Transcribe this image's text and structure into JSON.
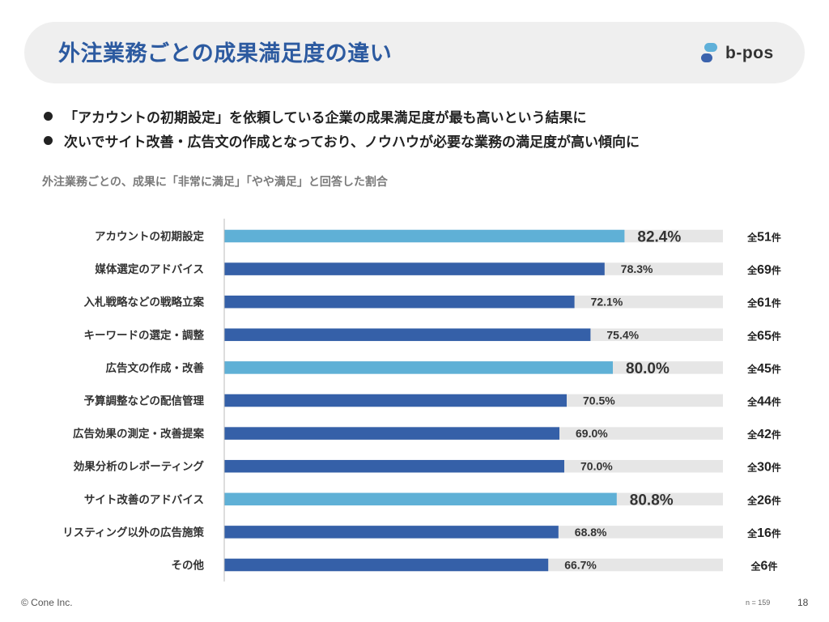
{
  "header": {
    "title": "外注業務ごとの成果満足度の違い",
    "logo_text": "b-pos",
    "logo_icon": "b-pos-logo-icon"
  },
  "bullets": [
    "「アカウントの初期設定」を依頼している企業の成果満足度が最も高いという結果に",
    "次いでサイト改善・広告文の作成となっており、ノウハウが必要な業務の満足度が高い傾向に"
  ],
  "subtitle": "外注業務ごとの、成果に「非常に満足」「やや満足」と回答した割合",
  "chart_data": {
    "type": "bar",
    "orientation": "horizontal",
    "categories": [
      "アカウントの初期設定",
      "媒体選定のアドバイス",
      "入札戦略などの戦略立案",
      "キーワードの選定・調整",
      "広告文の作成・改善",
      "予算調整などの配信管理",
      "広告効果の測定・改善提案",
      "効果分析のレポーティング",
      "サイト改善のアドバイス",
      "リスティング以外の広告施策",
      "その他"
    ],
    "values": [
      82.4,
      78.3,
      72.1,
      75.4,
      80.0,
      70.5,
      69.0,
      70.0,
      80.8,
      68.8,
      66.7
    ],
    "value_labels": [
      "82.4%",
      "78.3%",
      "72.1%",
      "75.4%",
      "80.0%",
      "70.5%",
      "69.0%",
      "70.0%",
      "80.8%",
      "68.8%",
      "66.7%"
    ],
    "highlighted": [
      true,
      false,
      false,
      false,
      true,
      false,
      false,
      false,
      true,
      false,
      false
    ],
    "counts": [
      {
        "prefix": "全",
        "num": "51",
        "suffix": "件"
      },
      {
        "prefix": "全",
        "num": "69",
        "suffix": "件"
      },
      {
        "prefix": "全",
        "num": "61",
        "suffix": "件"
      },
      {
        "prefix": "全",
        "num": "65",
        "suffix": "件"
      },
      {
        "prefix": "全",
        "num": "45",
        "suffix": "件"
      },
      {
        "prefix": "全",
        "num": "44",
        "suffix": "件"
      },
      {
        "prefix": "全",
        "num": "42",
        "suffix": "件"
      },
      {
        "prefix": "全",
        "num": "30",
        "suffix": "件"
      },
      {
        "prefix": "全",
        "num": "26",
        "suffix": "件"
      },
      {
        "prefix": "全",
        "num": "16",
        "suffix": "件"
      },
      {
        "prefix": "全",
        "num": "6",
        "suffix": "件"
      }
    ],
    "xlim": [
      0,
      100
    ],
    "grid": false,
    "colors": {
      "bar": "#3560a8",
      "highlight": "#5fb0d6",
      "track": "#e6e6e6",
      "axis": "#bbbbbb"
    }
  },
  "footer": {
    "copyright": "© Cone Inc.",
    "sample_size": "n = 159",
    "page_number": "18"
  }
}
